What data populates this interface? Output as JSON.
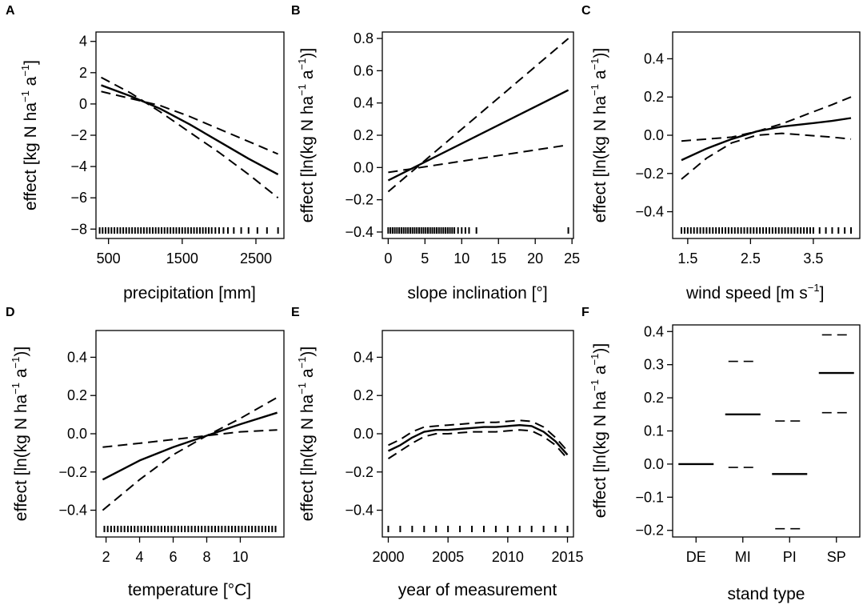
{
  "chart_data": [
    {
      "panel": "A",
      "type": "line",
      "xlabel": "precipitation [mm]",
      "ylabel": "effect [kg N ha⁻¹ a⁻¹]",
      "xlim": [
        330,
        2880
      ],
      "ylim": [
        -8.6,
        4.6
      ],
      "xticks": [
        500,
        1500,
        2500
      ],
      "yticks": [
        -8,
        -6,
        -4,
        -2,
        0,
        2,
        4
      ],
      "series": [
        {
          "name": "estimate",
          "style": "solid",
          "x": [
            400,
            800,
            1200,
            1600,
            2000,
            2400,
            2800
          ],
          "y": [
            1.2,
            0.5,
            -0.3,
            -1.3,
            -2.4,
            -3.5,
            -4.5
          ]
        },
        {
          "name": "upper band",
          "style": "dashed",
          "x": [
            400,
            800,
            1200,
            1600,
            2000,
            2400,
            2800
          ],
          "y": [
            0.8,
            0.35,
            -0.1,
            -0.8,
            -1.6,
            -2.4,
            -3.2
          ]
        },
        {
          "name": "lower band",
          "style": "dashed",
          "x": [
            400,
            800,
            1200,
            1600,
            2000,
            2400,
            2800
          ],
          "y": [
            1.7,
            0.7,
            -0.5,
            -1.8,
            -3.1,
            -4.5,
            -6.0
          ]
        }
      ],
      "rug": [
        380,
        420,
        460,
        500,
        540,
        580,
        620,
        660,
        700,
        740,
        780,
        820,
        860,
        900,
        940,
        980,
        1020,
        1060,
        1100,
        1140,
        1180,
        1220,
        1260,
        1300,
        1340,
        1380,
        1420,
        1460,
        1500,
        1540,
        1580,
        1620,
        1660,
        1700,
        1740,
        1780,
        1820,
        1860,
        1900,
        1950,
        2000,
        2060,
        2120,
        2200,
        2300,
        2400,
        2520,
        2650,
        2800
      ]
    },
    {
      "panel": "B",
      "type": "line",
      "xlabel": "slope inclination [°]",
      "ylabel": "effect [ln(kg N ha⁻¹ a⁻¹)]",
      "xlim": [
        -0.8,
        25.2
      ],
      "ylim": [
        -0.44,
        0.84
      ],
      "xticks": [
        0,
        5,
        10,
        15,
        20,
        25
      ],
      "yticks": [
        -0.4,
        -0.2,
        0.0,
        0.2,
        0.4,
        0.6,
        0.8
      ],
      "series": [
        {
          "name": "estimate",
          "style": "solid",
          "x": [
            0,
            24.5
          ],
          "y": [
            -0.08,
            0.48
          ]
        },
        {
          "name": "upper band",
          "style": "dashed",
          "x": [
            0,
            24.5
          ],
          "y": [
            -0.15,
            0.8
          ]
        },
        {
          "name": "lower band",
          "style": "dashed",
          "x": [
            0,
            24.5
          ],
          "y": [
            -0.03,
            0.14
          ]
        }
      ],
      "rug": [
        0,
        0.3,
        0.6,
        0.9,
        1.2,
        1.5,
        1.8,
        2.1,
        2.4,
        2.7,
        3,
        3.3,
        3.6,
        3.9,
        4.2,
        4.5,
        4.8,
        5.1,
        5.4,
        5.7,
        6,
        6.3,
        6.6,
        6.9,
        7.2,
        7.5,
        7.8,
        8.1,
        8.4,
        8.7,
        9,
        9.5,
        10,
        10.5,
        11,
        12,
        24.5
      ]
    },
    {
      "panel": "C",
      "type": "line",
      "xlabel": "wind speed [m s⁻¹]",
      "ylabel": "effect [ln(kg N ha⁻¹ a⁻¹)]",
      "xlim": [
        1.26,
        4.24
      ],
      "ylim": [
        -0.54,
        0.54
      ],
      "xticks": [
        1.5,
        2.5,
        3.5
      ],
      "yticks": [
        -0.4,
        -0.2,
        0.0,
        0.2,
        0.4
      ],
      "series": [
        {
          "name": "estimate",
          "style": "solid",
          "x": [
            1.4,
            1.8,
            2.2,
            2.6,
            3.0,
            3.4,
            3.8,
            4.1
          ],
          "y": [
            -0.13,
            -0.07,
            -0.02,
            0.02,
            0.045,
            0.06,
            0.075,
            0.09
          ]
        },
        {
          "name": "upper band",
          "style": "dashed",
          "x": [
            1.4,
            1.8,
            2.2,
            2.6,
            3.0,
            3.4,
            3.8,
            4.1
          ],
          "y": [
            -0.03,
            -0.02,
            -0.01,
            0.02,
            0.06,
            0.11,
            0.16,
            0.2
          ]
        },
        {
          "name": "lower band",
          "style": "dashed",
          "x": [
            1.4,
            1.8,
            2.2,
            2.6,
            3.0,
            3.4,
            3.8,
            4.1
          ],
          "y": [
            -0.23,
            -0.12,
            -0.04,
            0.0,
            0.01,
            0.0,
            -0.01,
            -0.02
          ]
        }
      ],
      "rug": [
        1.4,
        1.45,
        1.5,
        1.55,
        1.6,
        1.65,
        1.7,
        1.75,
        1.8,
        1.85,
        1.9,
        1.95,
        2.0,
        2.05,
        2.1,
        2.15,
        2.2,
        2.25,
        2.3,
        2.35,
        2.4,
        2.45,
        2.5,
        2.55,
        2.6,
        2.65,
        2.7,
        2.75,
        2.8,
        2.85,
        2.9,
        2.95,
        3.0,
        3.05,
        3.1,
        3.15,
        3.2,
        3.25,
        3.3,
        3.35,
        3.4,
        3.45,
        3.5,
        3.6,
        3.7,
        3.8,
        3.9,
        4.0,
        4.1
      ]
    },
    {
      "panel": "D",
      "type": "line",
      "xlabel": "temperature [°C]",
      "ylabel": "effect [ln(kg N ha⁻¹ a⁻¹)]",
      "xlim": [
        1.4,
        12.6
      ],
      "ylim": [
        -0.54,
        0.54
      ],
      "xticks": [
        2,
        4,
        6,
        8,
        10
      ],
      "yticks": [
        -0.4,
        -0.2,
        0.0,
        0.2,
        0.4
      ],
      "series": [
        {
          "name": "estimate",
          "style": "solid",
          "x": [
            1.8,
            4,
            6,
            8,
            10,
            12.2
          ],
          "y": [
            -0.24,
            -0.14,
            -0.07,
            -0.01,
            0.05,
            0.11
          ]
        },
        {
          "name": "upper band",
          "style": "dashed",
          "x": [
            1.8,
            4,
            6,
            8,
            10,
            12.2
          ],
          "y": [
            -0.07,
            -0.05,
            -0.03,
            -0.01,
            0.01,
            0.02
          ]
        },
        {
          "name": "lower band",
          "style": "dashed",
          "x": [
            1.8,
            4,
            6,
            8,
            10,
            12.2
          ],
          "y": [
            -0.4,
            -0.24,
            -0.11,
            -0.01,
            0.08,
            0.19
          ]
        }
      ],
      "rug": [
        1.9,
        2.1,
        2.3,
        2.5,
        2.7,
        2.9,
        3.1,
        3.3,
        3.5,
        3.7,
        3.9,
        4.1,
        4.3,
        4.5,
        4.7,
        4.9,
        5.1,
        5.3,
        5.5,
        5.7,
        5.9,
        6.1,
        6.3,
        6.5,
        6.7,
        6.9,
        7.1,
        7.3,
        7.5,
        7.7,
        7.9,
        8.1,
        8.3,
        8.5,
        8.7,
        8.9,
        9.1,
        9.3,
        9.5,
        9.7,
        9.9,
        10.1,
        10.3,
        10.5,
        10.7,
        10.9,
        11.1,
        11.3,
        11.5,
        11.7,
        11.9,
        12.1
      ]
    },
    {
      "panel": "E",
      "type": "line",
      "xlabel": "year of measurement",
      "ylabel": "effect [ln(kg N ha⁻¹ a⁻¹)]",
      "xlim": [
        1999.5,
        2015.5
      ],
      "ylim": [
        -0.54,
        0.54
      ],
      "xticks": [
        2000,
        2005,
        2010,
        2015
      ],
      "yticks": [
        -0.4,
        -0.2,
        0.0,
        0.2,
        0.4
      ],
      "series": [
        {
          "name": "estimate",
          "style": "solid",
          "x": [
            2000,
            2001,
            2002,
            2003,
            2004,
            2005,
            2006,
            2007,
            2008,
            2009,
            2010,
            2011,
            2012,
            2013,
            2014,
            2015
          ],
          "y": [
            -0.09,
            -0.06,
            -0.02,
            0.01,
            0.02,
            0.02,
            0.025,
            0.03,
            0.035,
            0.035,
            0.04,
            0.045,
            0.04,
            0.01,
            -0.04,
            -0.11
          ]
        },
        {
          "name": "upper band",
          "style": "dashed",
          "x": [
            2000,
            2001,
            2002,
            2003,
            2004,
            2005,
            2006,
            2007,
            2008,
            2009,
            2010,
            2011,
            2012,
            2013,
            2014,
            2015
          ],
          "y": [
            -0.06,
            -0.03,
            0.01,
            0.035,
            0.04,
            0.045,
            0.05,
            0.055,
            0.06,
            0.06,
            0.065,
            0.07,
            0.065,
            0.035,
            -0.02,
            -0.09
          ]
        },
        {
          "name": "lower band",
          "style": "dashed",
          "x": [
            2000,
            2001,
            2002,
            2003,
            2004,
            2005,
            2006,
            2007,
            2008,
            2009,
            2010,
            2011,
            2012,
            2013,
            2014,
            2015
          ],
          "y": [
            -0.13,
            -0.09,
            -0.05,
            -0.015,
            0.0,
            0.0,
            0.005,
            0.01,
            0.01,
            0.01,
            0.015,
            0.02,
            0.015,
            -0.015,
            -0.06,
            -0.13
          ]
        }
      ],
      "rug": [
        2000,
        2001,
        2002,
        2003,
        2004,
        2005,
        2006,
        2007,
        2008,
        2009,
        2010,
        2011,
        2012,
        2013,
        2014,
        2015
      ]
    },
    {
      "panel": "F",
      "type": "categorical-effect",
      "xlabel": "stand type",
      "ylabel": "effect [ln(kg N ha⁻¹ a⁻¹)]",
      "categories": [
        "DE",
        "MI",
        "PI",
        "SP"
      ],
      "ylim": [
        -0.22,
        0.42
      ],
      "yticks": [
        -0.2,
        -0.1,
        0.0,
        0.1,
        0.2,
        0.3,
        0.4
      ],
      "values": [
        0.0,
        0.15,
        -0.03,
        0.275
      ],
      "upper": [
        null,
        0.31,
        0.13,
        0.39
      ],
      "lower": [
        null,
        -0.01,
        -0.195,
        0.155
      ]
    }
  ]
}
